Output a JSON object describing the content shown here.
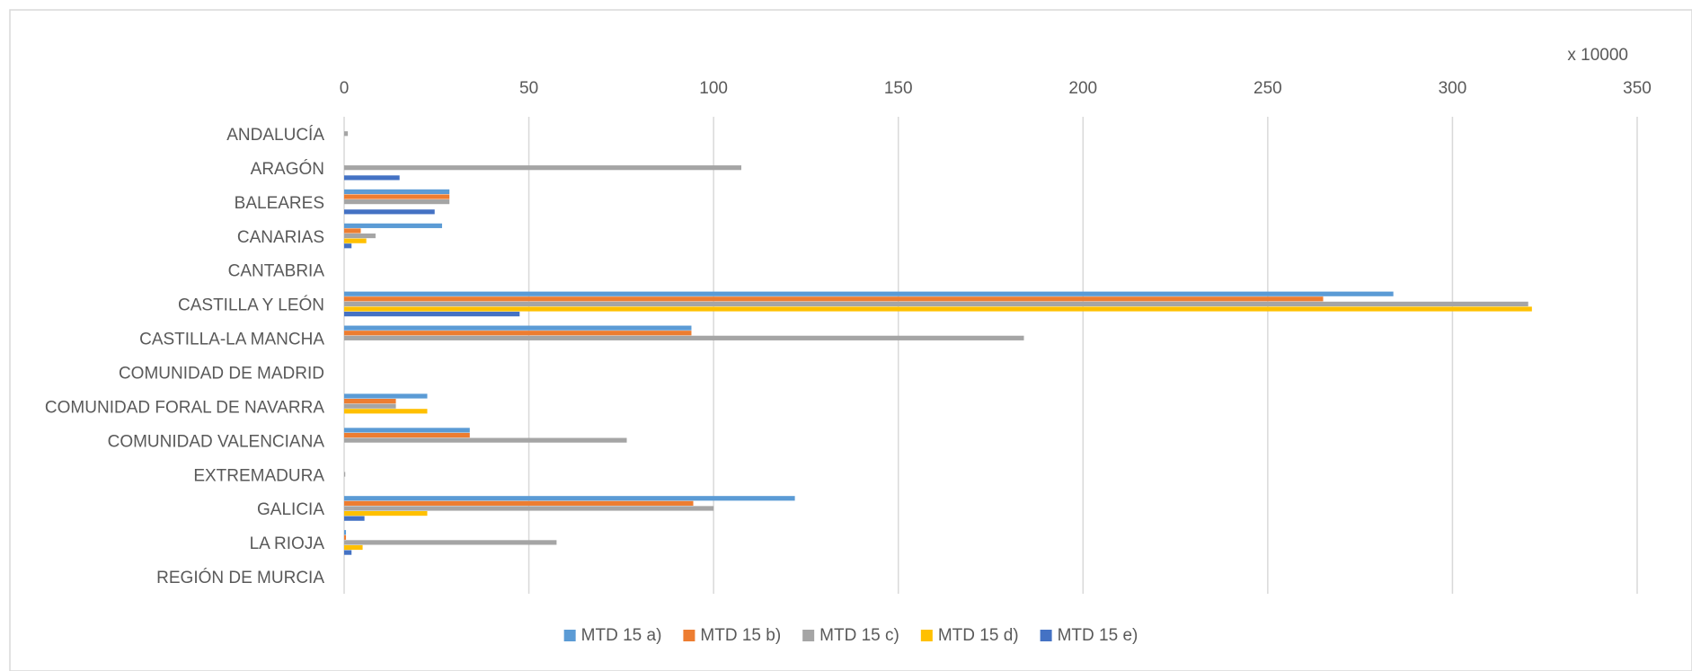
{
  "chart_data": {
    "type": "bar",
    "orientation": "horizontal",
    "unit_label": "x 10000",
    "xlim": [
      0,
      350
    ],
    "x_ticks": [
      0,
      50,
      100,
      150,
      200,
      250,
      300,
      350
    ],
    "grid": "vertical gridlines",
    "legend_position": "bottom",
    "categories": [
      "ANDALUCÍA",
      "ARAGÓN",
      "BALEARES",
      "CANARIAS",
      "CANTABRIA",
      "CASTILLA Y LEÓN",
      "CASTILLA-LA MANCHA",
      "COMUNIDAD DE MADRID",
      "COMUNIDAD FORAL DE NAVARRA",
      "COMUNIDAD VALENCIANA",
      "EXTREMADURA",
      "GALICIA",
      "LA RIOJA",
      "REGIÓN DE MURCIA"
    ],
    "series": [
      {
        "name": "MTD 15 a)",
        "color": "#5B9BD5",
        "values": [
          0,
          0,
          28.5,
          26.5,
          0,
          284,
          94,
          0,
          22.5,
          34,
          0,
          122,
          0.5,
          0
        ]
      },
      {
        "name": "MTD 15 b)",
        "color": "#ED7D31",
        "values": [
          0,
          0,
          28.5,
          4.5,
          0,
          265,
          94,
          0,
          14,
          34,
          0,
          94.5,
          0.5,
          0
        ]
      },
      {
        "name": "MTD 15 c)",
        "color": "#A5A5A5",
        "values": [
          1,
          107.5,
          28.5,
          8.5,
          0,
          320.5,
          184,
          0,
          14,
          76.5,
          0.3,
          100,
          57.5,
          0
        ]
      },
      {
        "name": "MTD 15 d)",
        "color": "#FFC000",
        "values": [
          0,
          0,
          0,
          6,
          0,
          321.5,
          0,
          0,
          22.5,
          0,
          0,
          22.5,
          5,
          0
        ]
      },
      {
        "name": "MTD 15 e)",
        "color": "#4472C4",
        "values": [
          0,
          15,
          24.5,
          2,
          0,
          47.5,
          0,
          0,
          0,
          0,
          0,
          5.5,
          2,
          0
        ]
      }
    ]
  }
}
